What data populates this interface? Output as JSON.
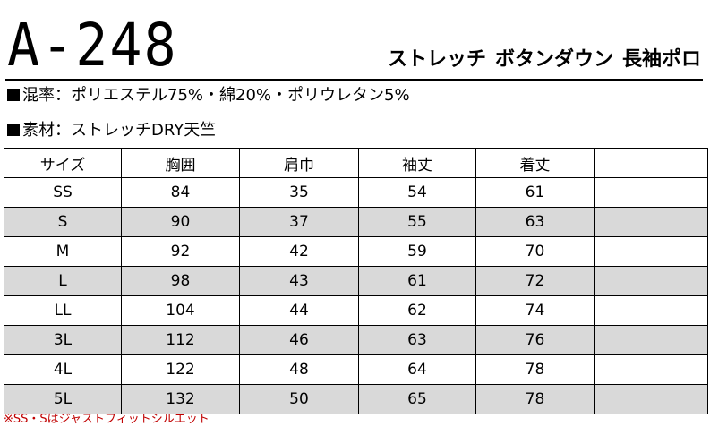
{
  "product": {
    "code": "A-248",
    "name_part1": "ストレッチ",
    "name_part2": "ボタンダウン",
    "name_part3": "長袖ポロ"
  },
  "specs": {
    "blend": "混率：ポリエステル75%・綿20%・ポリウレタン5%",
    "material": "素材：ストレッチDRY天竺"
  },
  "table": {
    "headers": [
      "サイズ",
      "胸囲",
      "肩巾",
      "袖丈",
      "着丈",
      ""
    ],
    "rows": [
      [
        "SS",
        "84",
        "35",
        "54",
        "61",
        ""
      ],
      [
        "S",
        "90",
        "37",
        "55",
        "63",
        ""
      ],
      [
        "M",
        "92",
        "42",
        "59",
        "70",
        ""
      ],
      [
        "L",
        "98",
        "43",
        "61",
        "72",
        ""
      ],
      [
        "LL",
        "104",
        "44",
        "62",
        "74",
        ""
      ],
      [
        "3L",
        "112",
        "46",
        "63",
        "76",
        ""
      ],
      [
        "4L",
        "122",
        "48",
        "64",
        "78",
        ""
      ],
      [
        "5L",
        "132",
        "50",
        "65",
        "78",
        ""
      ]
    ]
  },
  "note": "※SS・Sはジャストフィットシルエット",
  "colors": {
    "shaded_row": "#d9d9d9",
    "note_text": "#c00000",
    "text": "#000000"
  }
}
